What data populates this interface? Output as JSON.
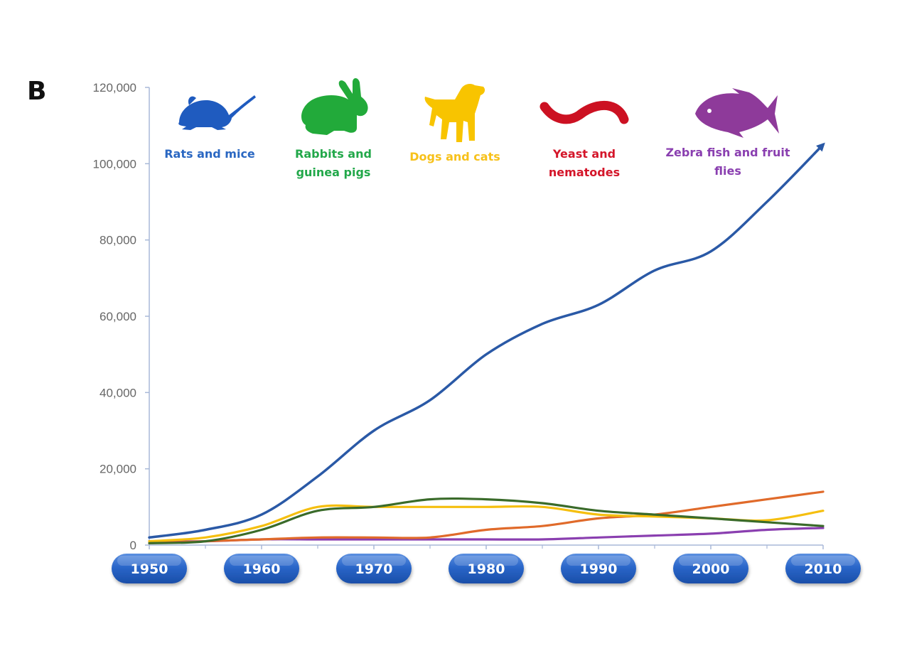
{
  "panel_label": "B",
  "chart_data": {
    "type": "line",
    "title": "",
    "xlabel": "",
    "ylabel": "",
    "xlim": [
      1950,
      2010
    ],
    "ylim": [
      0,
      120000
    ],
    "y_ticks": [
      0,
      20000,
      40000,
      60000,
      80000,
      100000,
      120000
    ],
    "y_tick_labels": [
      "0",
      "20,000",
      "40,000",
      "60,000",
      "80,000",
      "100,000",
      "120,000"
    ],
    "x_ticks": [
      1950,
      1960,
      1970,
      1980,
      1990,
      2000,
      2010
    ],
    "x_tick_labels": [
      "1950",
      "1960",
      "1970",
      "1980",
      "1990",
      "2000",
      "2010"
    ],
    "grid": false,
    "x": [
      1950,
      1955,
      1960,
      1965,
      1970,
      1975,
      1980,
      1985,
      1990,
      1995,
      2000,
      2005,
      2010
    ],
    "series": [
      {
        "key": "rats",
        "name": "Rats and mice",
        "color": "#2a59a6",
        "arrow": true,
        "values": [
          2000,
          4000,
          8000,
          18000,
          30000,
          38000,
          50000,
          58000,
          63000,
          72000,
          77000,
          90000,
          105000
        ]
      },
      {
        "key": "rabbits",
        "name": "Rabbits and guinea pigs",
        "color": "#3a6b2a",
        "values": [
          500,
          1000,
          4000,
          9000,
          10000,
          12000,
          12000,
          11000,
          9000,
          8000,
          7000,
          6000,
          5000
        ]
      },
      {
        "key": "dogs",
        "name": "Dogs and cats",
        "color": "#f5bf0f",
        "values": [
          1000,
          2000,
          5000,
          10000,
          10000,
          10000,
          10000,
          10000,
          8000,
          7500,
          7000,
          6500,
          9000
        ]
      },
      {
        "key": "yeast",
        "name": "Yeast and nematodes",
        "color": "#e06a2a",
        "values": [
          500,
          1000,
          1500,
          2000,
          2000,
          2000,
          4000,
          5000,
          7000,
          8000,
          10000,
          12000,
          14000
        ]
      },
      {
        "key": "zebra",
        "name": "Zebra fish and fruit flies",
        "color": "#8a3fb0",
        "values": [
          1000,
          1000,
          1500,
          1500,
          1500,
          1500,
          1500,
          1500,
          2000,
          2500,
          3000,
          4000,
          4500
        ]
      }
    ],
    "legend": {
      "placement": "top",
      "items": [
        {
          "icon": "mouse-icon",
          "lines": [
            "Rats and mice"
          ],
          "color": "#2a67c2",
          "icon_color": "#1f5bbf"
        },
        {
          "icon": "rabbit-icon",
          "lines": [
            "Rabbits and",
            "guinea pigs"
          ],
          "color": "#22a84a",
          "icon_color": "#22aa3a"
        },
        {
          "icon": "dog-icon",
          "lines": [
            "Dogs and cats"
          ],
          "color": "#f7c11a",
          "icon_color": "#f8c400"
        },
        {
          "icon": "worm-icon",
          "lines": [
            "Yeast and",
            "nematodes"
          ],
          "color": "#d4162a",
          "icon_color": "#cc1122"
        },
        {
          "icon": "fish-icon",
          "lines": [
            "Zebra fish and fruit",
            "flies"
          ],
          "color": "#8a3fb0",
          "icon_color": "#8e3a9a"
        }
      ]
    },
    "year_pill_color": "#1f5fbf"
  }
}
